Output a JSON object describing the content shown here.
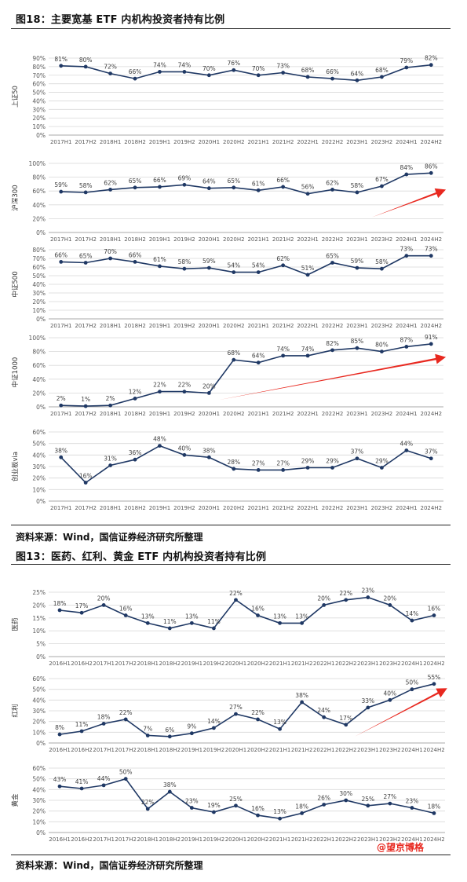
{
  "figure1": {
    "title": "图18：主要宽基 ETF 内机构投资者持有比例",
    "source": "资料来源：Wind，国信证券经济研究所整理"
  },
  "figure2": {
    "title": "图13：医药、红利、黄金 ETF 内机构投资者持有比例",
    "source": "资料来源：Wind，国信证券经济研究所整理"
  },
  "watermark": "@望京博格",
  "colors": {
    "line": "#1f3864",
    "grid": "#d9d9d9",
    "arrow": "#e8281f"
  },
  "chart_data": [
    {
      "type": "line",
      "figure": 1,
      "ylabel": "上证50",
      "ylim": [
        0,
        90
      ],
      "yticks": [
        0,
        10,
        20,
        30,
        40,
        50,
        60,
        70,
        80,
        90
      ],
      "categories": [
        "2017H1",
        "2017H2",
        "2018H1",
        "2018H2",
        "2019H1",
        "2019H2",
        "2020H1",
        "2020H2",
        "2021H1",
        "2021H2",
        "2022H1",
        "2022H2",
        "2023H1",
        "2023H2",
        "2024H1",
        "2024H2"
      ],
      "values": [
        81,
        80,
        72,
        66,
        74,
        74,
        70,
        76,
        70,
        73,
        68,
        66,
        64,
        68,
        79,
        82
      ],
      "labels": [
        "81%",
        "80%",
        "72%",
        "66%",
        "74%",
        "74%",
        "70%",
        "76%",
        "70%",
        "73%",
        "68%",
        "66%",
        "64%",
        "68%",
        "79%",
        "82%"
      ],
      "arrow": null
    },
    {
      "type": "line",
      "figure": 1,
      "ylabel": "沪深300",
      "ylim": [
        0,
        100
      ],
      "yticks": [
        0,
        20,
        40,
        60,
        80,
        100
      ],
      "categories": [
        "2017H1",
        "2017H2",
        "2018H1",
        "2018H2",
        "2019H1",
        "2019H2",
        "2020H1",
        "2020H2",
        "2021H1",
        "2021H2",
        "2022H1",
        "2022H2",
        "2023H1",
        "2023H2",
        "2024H1",
        "2024H2"
      ],
      "values": [
        59,
        58,
        62,
        65,
        66,
        69,
        64,
        65,
        61,
        66,
        56,
        62,
        58,
        67,
        84,
        86
      ],
      "labels": [
        "59%",
        "58%",
        "62%",
        "65%",
        "66%",
        "69%",
        "64%",
        "65%",
        "61%",
        "66%",
        "56%",
        "62%",
        "58%",
        "67%",
        "84%",
        "86%"
      ],
      "arrow": [
        12.6,
        22,
        15.6,
        62
      ]
    },
    {
      "type": "line",
      "figure": 1,
      "ylabel": "中证500",
      "ylim": [
        0,
        80
      ],
      "yticks": [
        0,
        10,
        20,
        30,
        40,
        50,
        60,
        70,
        80
      ],
      "categories": [
        "2017H1",
        "2017H2",
        "2018H1",
        "2018H2",
        "2019H1",
        "2019H2",
        "2020H1",
        "2020H2",
        "2021H1",
        "2021H2",
        "2022H1",
        "2022H2",
        "2023H1",
        "2023H2",
        "2024H1",
        "2024H2"
      ],
      "values": [
        66,
        65,
        70,
        66,
        61,
        58,
        59,
        54,
        54,
        62,
        51,
        65,
        59,
        58,
        73,
        73
      ],
      "labels": [
        "66%",
        "65%",
        "70%",
        "66%",
        "61%",
        "58%",
        "59%",
        "54%",
        "54%",
        "62%",
        "51%",
        "65%",
        "59%",
        "58%",
        "73%",
        "73%"
      ],
      "arrow": null
    },
    {
      "type": "line",
      "figure": 1,
      "ylabel": "中证1000",
      "ylim": [
        0,
        100
      ],
      "yticks": [
        0,
        20,
        40,
        60,
        80,
        100
      ],
      "categories": [
        "2017H1",
        "2017H2",
        "2018H1",
        "2018H2",
        "2019H1",
        "2019H2",
        "2020H1",
        "2020H2",
        "2021H1",
        "2021H2",
        "2022H1",
        "2022H2",
        "2023H1",
        "2023H2",
        "2024H1",
        "2024H2"
      ],
      "values": [
        2,
        1,
        2,
        12,
        22,
        22,
        20,
        68,
        64,
        74,
        74,
        82,
        85,
        80,
        87,
        91
      ],
      "labels": [
        "2%",
        "1%",
        "2%",
        "12%",
        "22%",
        "22%",
        "20%",
        "68%",
        "64%",
        "74%",
        "74%",
        "82%",
        "85%",
        "80%",
        "87%",
        "91%"
      ],
      "arrow": [
        6.4,
        10,
        15.6,
        72
      ]
    },
    {
      "type": "line",
      "figure": 1,
      "ylabel": "创业板via",
      "ylim": [
        0,
        60
      ],
      "yticks": [
        0,
        10,
        20,
        30,
        40,
        50,
        60
      ],
      "categories": [
        "2017H1",
        "2017H2",
        "2018H1",
        "2018H2",
        "2019H1",
        "2019H2",
        "2020H1",
        "2020H2",
        "2021H1",
        "2021H2",
        "2022H1",
        "2022H2",
        "2023H1",
        "2023H2",
        "2024H1",
        "2024H2"
      ],
      "values": [
        38,
        16,
        31,
        36,
        48,
        40,
        38,
        28,
        27,
        27,
        29,
        29,
        37,
        29,
        44,
        37
      ],
      "labels": [
        "38%",
        "16%",
        "31%",
        "36%",
        "48%",
        "40%",
        "38%",
        "28%",
        "27%",
        "27%",
        "29%",
        "29%",
        "37%",
        "29%",
        "44%",
        "37%"
      ],
      "arrow": null
    },
    {
      "type": "line",
      "figure": 2,
      "ylabel": "医药",
      "ylim": [
        0,
        25
      ],
      "yticks": [
        0,
        5,
        10,
        15,
        20,
        25
      ],
      "categories": [
        "2016H1",
        "2016H2",
        "2017H1",
        "2017H2",
        "2018H1",
        "2018H2",
        "2019H1",
        "2019H2",
        "2020H1",
        "2020H2",
        "2021H1",
        "2021H2",
        "2022H1",
        "2022H2",
        "2023H1",
        "2023H2",
        "2024H1",
        "2024H2"
      ],
      "values": [
        18,
        17,
        20,
        16,
        13,
        11,
        13,
        11,
        22,
        16,
        13,
        13,
        20,
        22,
        23,
        20,
        14,
        16
      ],
      "labels": [
        "18%",
        "17%",
        "20%",
        "16%",
        "13%",
        "11%",
        "13%",
        "11%",
        "22%",
        "16%",
        "13%",
        "13%",
        "20%",
        "22%",
        "23%",
        "20%",
        "14%",
        "16%"
      ],
      "arrow": null
    },
    {
      "type": "line",
      "figure": 2,
      "ylabel": "红利",
      "ylim": [
        0,
        60
      ],
      "yticks": [
        0,
        10,
        20,
        30,
        40,
        50,
        60
      ],
      "categories": [
        "2016H1",
        "2016H2",
        "2017H1",
        "2017H2",
        "2018H1",
        "2018H2",
        "2019H1",
        "2019H2",
        "2020H1",
        "2020H2",
        "2021H1",
        "2021H2",
        "2022H1",
        "2022H2",
        "2023H1",
        "2023H2",
        "2024H1",
        "2024H2"
      ],
      "values": [
        8,
        11,
        18,
        22,
        7,
        6,
        9,
        14,
        27,
        22,
        13,
        38,
        24,
        17,
        33,
        40,
        50,
        55
      ],
      "labels": [
        "8%",
        "11%",
        "18%",
        "22%",
        "7%",
        "6%",
        "9%",
        "14%",
        "27%",
        "22%",
        "13%",
        "38%",
        "24%",
        "17%",
        "33%",
        "40%",
        "50%",
        "55%"
      ],
      "arrow": [
        13.4,
        6,
        17.6,
        51
      ]
    },
    {
      "type": "line",
      "figure": 2,
      "ylabel": "黄金",
      "ylim": [
        0,
        60
      ],
      "yticks": [
        0,
        10,
        20,
        30,
        40,
        50,
        60
      ],
      "categories": [
        "2016H1",
        "2016H2",
        "2017H1",
        "2017H2",
        "2018H1",
        "2018H2",
        "2019H1",
        "2019H2",
        "2020H1",
        "2020H2",
        "2021H1",
        "2021H2",
        "2022H1",
        "2022H2",
        "2023H1",
        "2023H2",
        "2024H1",
        "2024H2"
      ],
      "values": [
        43,
        41,
        44,
        50,
        22,
        38,
        23,
        19,
        25,
        16,
        13,
        18,
        26,
        30,
        25,
        27,
        23,
        18
      ],
      "labels": [
        "43%",
        "41%",
        "44%",
        "50%",
        "22%",
        "38%",
        "23%",
        "19%",
        "25%",
        "16%",
        "13%",
        "18%",
        "26%",
        "30%",
        "25%",
        "27%",
        "23%",
        "18%"
      ],
      "arrow": null
    }
  ]
}
